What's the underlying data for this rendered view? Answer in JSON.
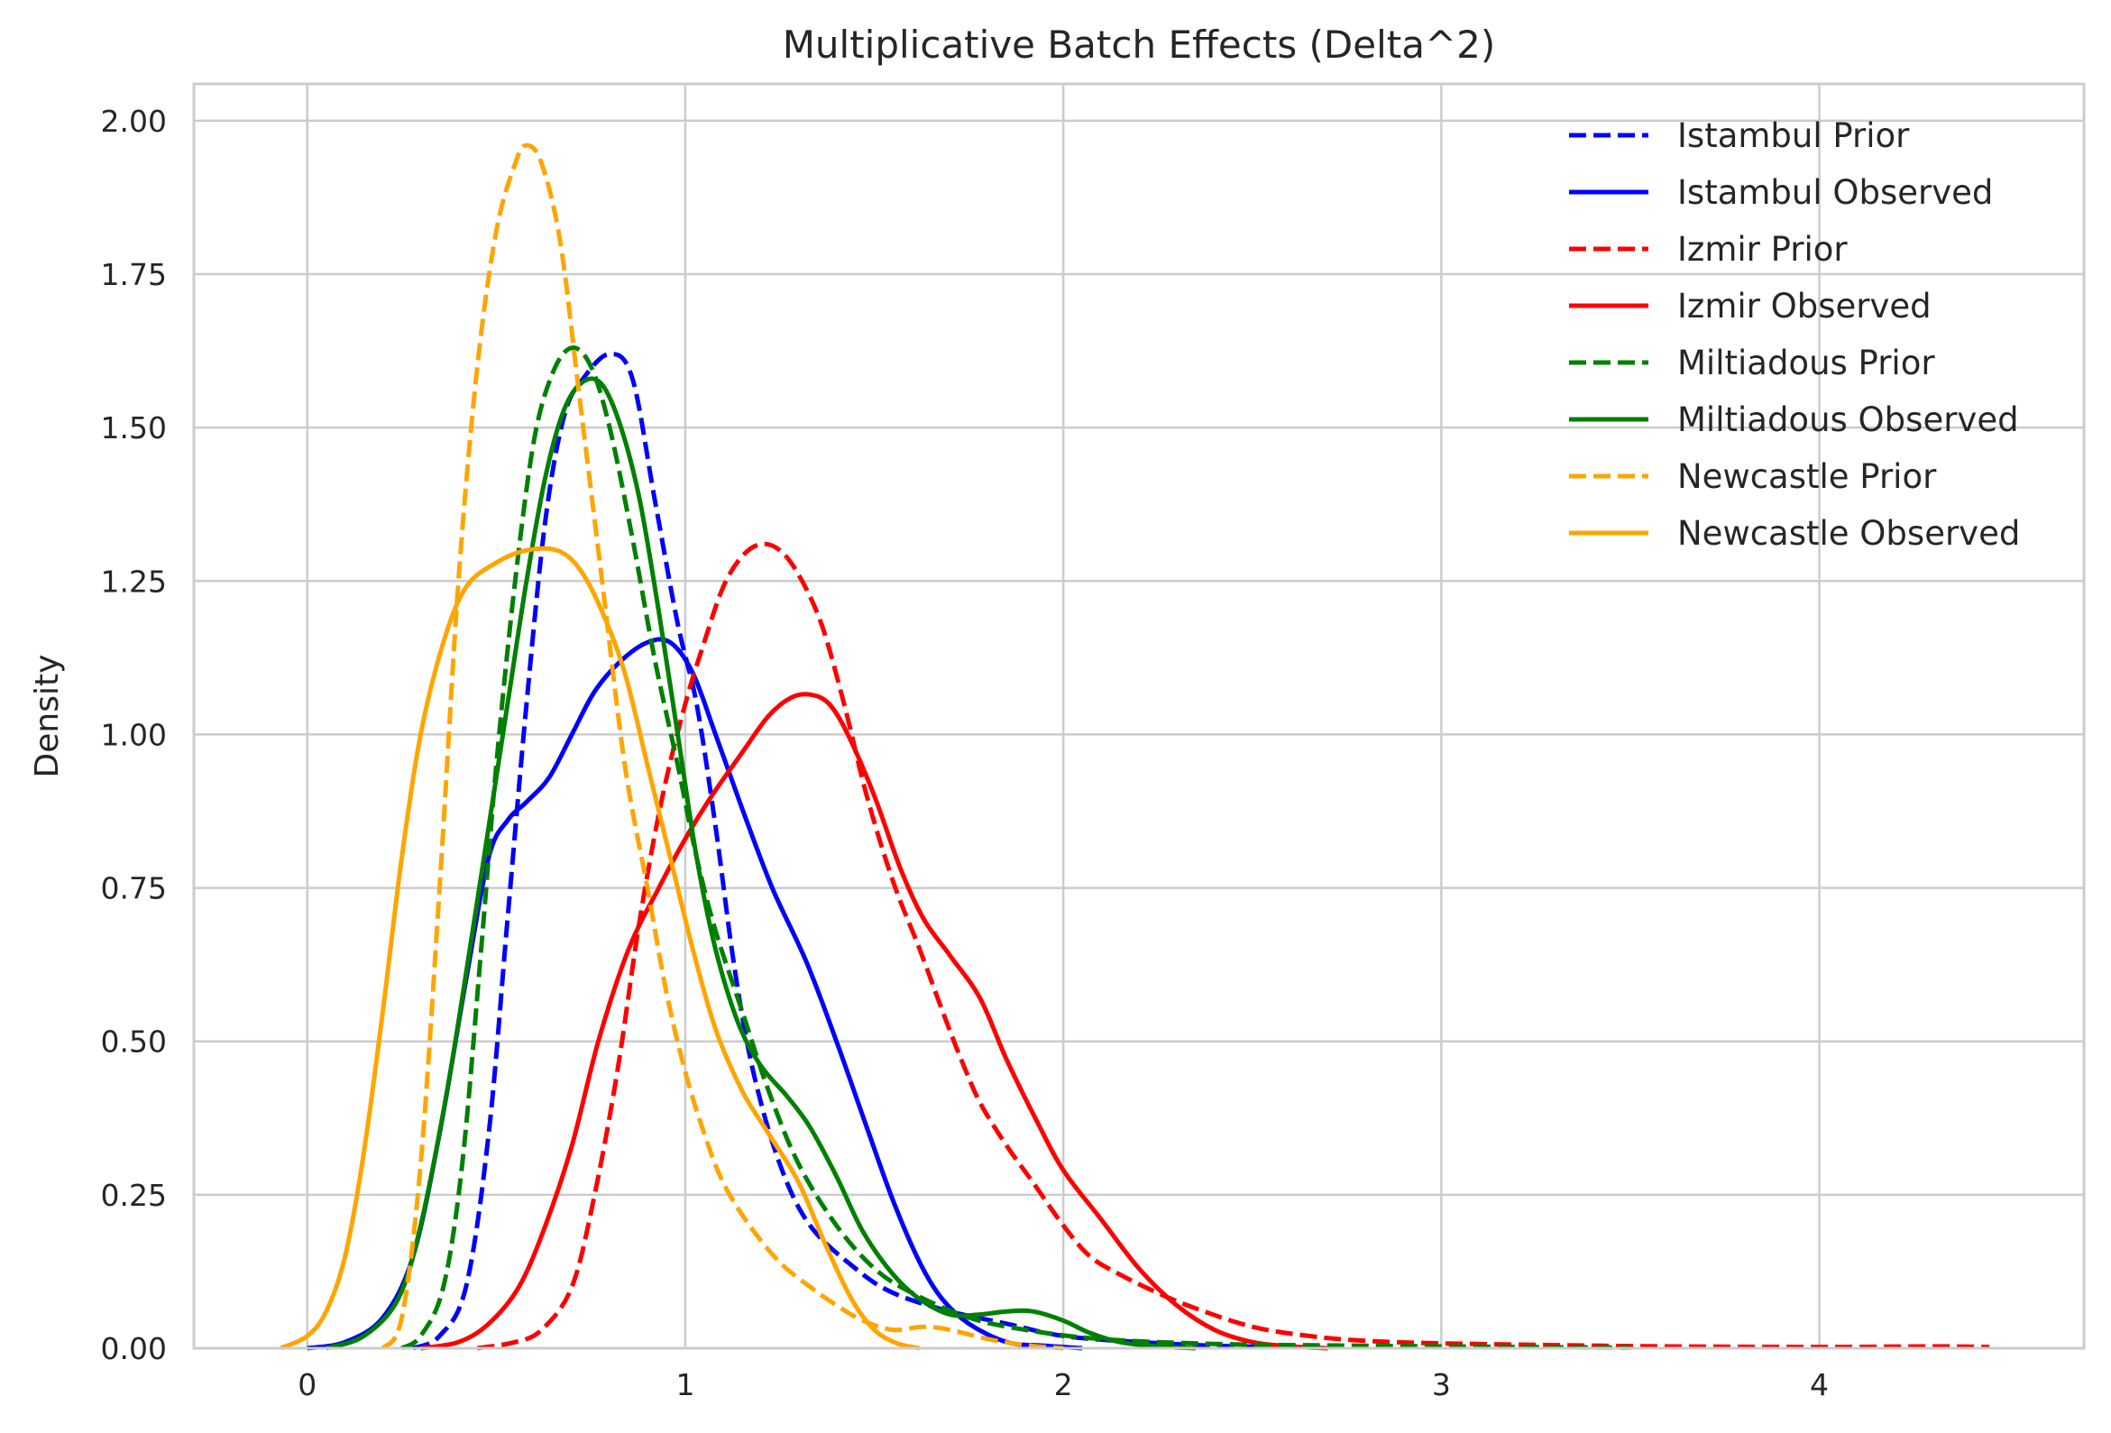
{
  "chart_data": {
    "type": "line",
    "title": "Multiplicative Batch Effects (Delta^2)",
    "xlabel": "",
    "ylabel": "Density",
    "xlim": [
      -0.3,
      4.7
    ],
    "ylim": [
      0,
      2.06
    ],
    "xticks": [
      0,
      1,
      2,
      3,
      4
    ],
    "xtick_labels": [
      "0",
      "1",
      "2",
      "3",
      "4"
    ],
    "yticks": [
      0,
      0.25,
      0.5,
      0.75,
      1.0,
      1.25,
      1.5,
      1.75,
      2.0
    ],
    "ytick_labels": [
      "0.00",
      "0.25",
      "0.50",
      "0.75",
      "1.00",
      "1.25",
      "1.50",
      "1.75",
      "2.00"
    ],
    "grid": true,
    "legend_position": "top-right",
    "series": [
      {
        "name": "Istambul Prior",
        "color": "#0000ff",
        "style": "dashed",
        "points": [
          [
            0.28,
            0.0
          ],
          [
            0.35,
            0.02
          ],
          [
            0.42,
            0.1
          ],
          [
            0.48,
            0.35
          ],
          [
            0.53,
            0.7
          ],
          [
            0.58,
            1.05
          ],
          [
            0.63,
            1.35
          ],
          [
            0.68,
            1.52
          ],
          [
            0.73,
            1.58
          ],
          [
            0.8,
            1.62
          ],
          [
            0.86,
            1.58
          ],
          [
            0.92,
            1.38
          ],
          [
            0.98,
            1.18
          ],
          [
            1.03,
            1.05
          ],
          [
            1.08,
            0.85
          ],
          [
            1.13,
            0.62
          ],
          [
            1.18,
            0.45
          ],
          [
            1.25,
            0.3
          ],
          [
            1.33,
            0.2
          ],
          [
            1.45,
            0.13
          ],
          [
            1.55,
            0.09
          ],
          [
            1.7,
            0.06
          ],
          [
            1.85,
            0.04
          ],
          [
            2.0,
            0.02
          ],
          [
            2.2,
            0.01
          ],
          [
            2.4,
            0.004
          ],
          [
            2.6,
            0.002
          ]
        ]
      },
      {
        "name": "Istambul Observed",
        "color": "#0000ff",
        "style": "solid",
        "points": [
          [
            0.0,
            0.0
          ],
          [
            0.1,
            0.01
          ],
          [
            0.2,
            0.05
          ],
          [
            0.28,
            0.15
          ],
          [
            0.35,
            0.35
          ],
          [
            0.42,
            0.6
          ],
          [
            0.48,
            0.8
          ],
          [
            0.53,
            0.86
          ],
          [
            0.58,
            0.89
          ],
          [
            0.64,
            0.93
          ],
          [
            0.7,
            1.0
          ],
          [
            0.76,
            1.07
          ],
          [
            0.83,
            1.12
          ],
          [
            0.9,
            1.15
          ],
          [
            0.96,
            1.15
          ],
          [
            1.02,
            1.1
          ],
          [
            1.08,
            1.0
          ],
          [
            1.15,
            0.88
          ],
          [
            1.23,
            0.75
          ],
          [
            1.32,
            0.63
          ],
          [
            1.4,
            0.5
          ],
          [
            1.48,
            0.36
          ],
          [
            1.55,
            0.24
          ],
          [
            1.62,
            0.14
          ],
          [
            1.68,
            0.08
          ],
          [
            1.75,
            0.04
          ],
          [
            1.85,
            0.01
          ],
          [
            1.95,
            0.004
          ],
          [
            2.05,
            0.0
          ]
        ]
      },
      {
        "name": "Izmir Prior",
        "color": "#ff0000",
        "style": "dashed",
        "points": [
          [
            0.45,
            0.0
          ],
          [
            0.55,
            0.01
          ],
          [
            0.62,
            0.03
          ],
          [
            0.7,
            0.1
          ],
          [
            0.76,
            0.25
          ],
          [
            0.82,
            0.45
          ],
          [
            0.88,
            0.7
          ],
          [
            0.94,
            0.9
          ],
          [
            1.0,
            1.05
          ],
          [
            1.05,
            1.15
          ],
          [
            1.1,
            1.24
          ],
          [
            1.15,
            1.29
          ],
          [
            1.2,
            1.31
          ],
          [
            1.25,
            1.3
          ],
          [
            1.3,
            1.26
          ],
          [
            1.36,
            1.18
          ],
          [
            1.42,
            1.05
          ],
          [
            1.48,
            0.9
          ],
          [
            1.55,
            0.76
          ],
          [
            1.62,
            0.65
          ],
          [
            1.68,
            0.55
          ],
          [
            1.73,
            0.47
          ],
          [
            1.78,
            0.4
          ],
          [
            1.85,
            0.33
          ],
          [
            1.92,
            0.27
          ],
          [
            2.0,
            0.2
          ],
          [
            2.07,
            0.15
          ],
          [
            2.15,
            0.12
          ],
          [
            2.25,
            0.09
          ],
          [
            2.35,
            0.065
          ],
          [
            2.5,
            0.035
          ],
          [
            2.65,
            0.02
          ],
          [
            2.8,
            0.012
          ],
          [
            3.0,
            0.008
          ],
          [
            3.3,
            0.005
          ],
          [
            3.6,
            0.003
          ],
          [
            4.0,
            0.002
          ],
          [
            4.3,
            0.003
          ],
          [
            4.45,
            0.002
          ]
        ]
      },
      {
        "name": "Izmir Observed",
        "color": "#ff0000",
        "style": "solid",
        "points": [
          [
            0.3,
            0.0
          ],
          [
            0.4,
            0.01
          ],
          [
            0.48,
            0.04
          ],
          [
            0.56,
            0.1
          ],
          [
            0.63,
            0.2
          ],
          [
            0.7,
            0.33
          ],
          [
            0.77,
            0.5
          ],
          [
            0.85,
            0.65
          ],
          [
            0.93,
            0.75
          ],
          [
            1.0,
            0.83
          ],
          [
            1.07,
            0.9
          ],
          [
            1.15,
            0.97
          ],
          [
            1.22,
            1.03
          ],
          [
            1.28,
            1.06
          ],
          [
            1.33,
            1.065
          ],
          [
            1.38,
            1.05
          ],
          [
            1.43,
            1.0
          ],
          [
            1.5,
            0.9
          ],
          [
            1.57,
            0.78
          ],
          [
            1.63,
            0.7
          ],
          [
            1.7,
            0.64
          ],
          [
            1.78,
            0.57
          ],
          [
            1.85,
            0.47
          ],
          [
            1.93,
            0.37
          ],
          [
            2.0,
            0.29
          ],
          [
            2.1,
            0.21
          ],
          [
            2.2,
            0.13
          ],
          [
            2.3,
            0.07
          ],
          [
            2.4,
            0.03
          ],
          [
            2.5,
            0.01
          ],
          [
            2.6,
            0.003
          ],
          [
            2.7,
            0.0
          ]
        ]
      },
      {
        "name": "Miltiadous Prior",
        "color": "#008000",
        "style": "dashed",
        "points": [
          [
            0.25,
            0.0
          ],
          [
            0.3,
            0.02
          ],
          [
            0.36,
            0.1
          ],
          [
            0.41,
            0.3
          ],
          [
            0.46,
            0.65
          ],
          [
            0.5,
            0.95
          ],
          [
            0.55,
            1.25
          ],
          [
            0.6,
            1.48
          ],
          [
            0.65,
            1.59
          ],
          [
            0.7,
            1.63
          ],
          [
            0.75,
            1.6
          ],
          [
            0.8,
            1.5
          ],
          [
            0.86,
            1.32
          ],
          [
            0.92,
            1.12
          ],
          [
            0.98,
            0.95
          ],
          [
            1.03,
            0.8
          ],
          [
            1.08,
            0.68
          ],
          [
            1.15,
            0.55
          ],
          [
            1.22,
            0.42
          ],
          [
            1.3,
            0.3
          ],
          [
            1.4,
            0.2
          ],
          [
            1.5,
            0.13
          ],
          [
            1.6,
            0.09
          ],
          [
            1.75,
            0.05
          ],
          [
            1.9,
            0.03
          ],
          [
            2.1,
            0.015
          ],
          [
            2.4,
            0.007
          ],
          [
            2.8,
            0.004
          ],
          [
            3.2,
            0.002
          ],
          [
            3.5,
            0.001
          ]
        ]
      },
      {
        "name": "Miltiadous Observed",
        "color": "#008000",
        "style": "solid",
        "points": [
          [
            0.05,
            0.0
          ],
          [
            0.15,
            0.02
          ],
          [
            0.24,
            0.08
          ],
          [
            0.3,
            0.2
          ],
          [
            0.37,
            0.42
          ],
          [
            0.43,
            0.65
          ],
          [
            0.48,
            0.85
          ],
          [
            0.53,
            1.05
          ],
          [
            0.58,
            1.25
          ],
          [
            0.63,
            1.42
          ],
          [
            0.68,
            1.53
          ],
          [
            0.73,
            1.575
          ],
          [
            0.78,
            1.57
          ],
          [
            0.83,
            1.5
          ],
          [
            0.88,
            1.38
          ],
          [
            0.93,
            1.2
          ],
          [
            0.98,
            1.0
          ],
          [
            1.03,
            0.8
          ],
          [
            1.08,
            0.65
          ],
          [
            1.14,
            0.53
          ],
          [
            1.2,
            0.46
          ],
          [
            1.27,
            0.41
          ],
          [
            1.33,
            0.36
          ],
          [
            1.4,
            0.28
          ],
          [
            1.47,
            0.19
          ],
          [
            1.55,
            0.12
          ],
          [
            1.62,
            0.08
          ],
          [
            1.7,
            0.055
          ],
          [
            1.78,
            0.055
          ],
          [
            1.85,
            0.06
          ],
          [
            1.92,
            0.06
          ],
          [
            2.0,
            0.045
          ],
          [
            2.07,
            0.025
          ],
          [
            2.15,
            0.01
          ],
          [
            2.25,
            0.003
          ],
          [
            2.35,
            0.0
          ]
        ]
      },
      {
        "name": "Newcastle Prior",
        "color": "#ffa500",
        "style": "dashed",
        "points": [
          [
            0.2,
            0.0
          ],
          [
            0.25,
            0.05
          ],
          [
            0.3,
            0.3
          ],
          [
            0.35,
            0.75
          ],
          [
            0.4,
            1.25
          ],
          [
            0.45,
            1.6
          ],
          [
            0.5,
            1.82
          ],
          [
            0.55,
            1.93
          ],
          [
            0.58,
            1.96
          ],
          [
            0.62,
            1.93
          ],
          [
            0.67,
            1.8
          ],
          [
            0.72,
            1.55
          ],
          [
            0.78,
            1.25
          ],
          [
            0.84,
            0.95
          ],
          [
            0.9,
            0.75
          ],
          [
            0.95,
            0.58
          ],
          [
            1.0,
            0.45
          ],
          [
            1.05,
            0.35
          ],
          [
            1.1,
            0.27
          ],
          [
            1.17,
            0.2
          ],
          [
            1.25,
            0.14
          ],
          [
            1.33,
            0.1
          ],
          [
            1.4,
            0.07
          ],
          [
            1.47,
            0.045
          ],
          [
            1.55,
            0.03
          ],
          [
            1.63,
            0.035
          ],
          [
            1.7,
            0.03
          ],
          [
            1.8,
            0.015
          ],
          [
            1.9,
            0.005
          ],
          [
            2.0,
            0.0
          ]
        ]
      },
      {
        "name": "Newcastle Observed",
        "color": "#ffa500",
        "style": "solid",
        "points": [
          [
            -0.07,
            0.0
          ],
          [
            0.0,
            0.02
          ],
          [
            0.05,
            0.06
          ],
          [
            0.1,
            0.15
          ],
          [
            0.15,
            0.32
          ],
          [
            0.2,
            0.55
          ],
          [
            0.25,
            0.8
          ],
          [
            0.3,
            1.0
          ],
          [
            0.36,
            1.15
          ],
          [
            0.42,
            1.24
          ],
          [
            0.5,
            1.28
          ],
          [
            0.58,
            1.3
          ],
          [
            0.66,
            1.3
          ],
          [
            0.72,
            1.27
          ],
          [
            0.78,
            1.2
          ],
          [
            0.84,
            1.1
          ],
          [
            0.9,
            0.95
          ],
          [
            0.96,
            0.8
          ],
          [
            1.02,
            0.65
          ],
          [
            1.08,
            0.52
          ],
          [
            1.15,
            0.42
          ],
          [
            1.22,
            0.35
          ],
          [
            1.3,
            0.27
          ],
          [
            1.37,
            0.17
          ],
          [
            1.44,
            0.08
          ],
          [
            1.5,
            0.03
          ],
          [
            1.56,
            0.008
          ],
          [
            1.62,
            0.0
          ]
        ]
      }
    ]
  }
}
